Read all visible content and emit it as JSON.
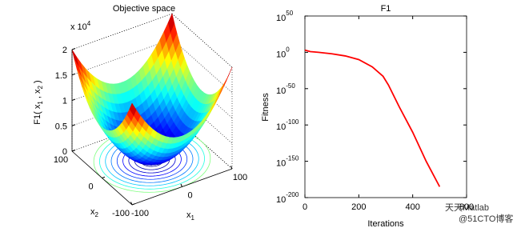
{
  "chart_data": [
    {
      "type": "surface",
      "title": "Objective space",
      "zlabel": [
        "F1( x",
        "1",
        " , x",
        "2",
        " )"
      ],
      "xlabel": {
        "base": "x",
        "sub": "1"
      },
      "ylabel": {
        "base": "x",
        "sub": "2"
      },
      "xlim": [
        -100,
        100
      ],
      "xticks": [
        -100,
        0,
        100
      ],
      "ylim": [
        -100,
        100
      ],
      "yticks": [
        -100,
        0,
        100
      ],
      "zlim": [
        0,
        2
      ],
      "zticks": [
        0,
        0.5,
        1,
        1.5,
        2
      ],
      "zscale": {
        "text": "x 10",
        "exp": "4"
      }
    },
    {
      "type": "line",
      "title": "F1",
      "xlabel": "Iterations",
      "ylabel": "Fitness",
      "log_y": true,
      "xlim": [
        0,
        600
      ],
      "xticks": [
        0,
        200,
        400,
        600
      ],
      "ylim": [
        1e-200,
        1e+50
      ],
      "yticks": [
        {
          "value": 1e+50,
          "label": "10",
          "exp": "50"
        },
        {
          "value": 1,
          "label": "10",
          "exp": "0"
        },
        {
          "value": 1e-50,
          "label": "10",
          "exp": "-50"
        },
        {
          "value": 1e-100,
          "label": "10",
          "exp": "-100"
        },
        {
          "value": 1e-150,
          "label": "10",
          "exp": "-150"
        },
        {
          "value": 1e-200,
          "label": "10",
          "exp": "-200"
        }
      ],
      "series": [
        {
          "color": "#ff0000",
          "x": [
            0,
            20,
            50,
            100,
            150,
            200,
            250,
            290,
            310,
            350,
            400,
            450,
            500
          ],
          "values": [
            1000.0,
            10.0,
            1.0,
            0.01,
            1e-05,
            1e-10,
            1e-20,
            1e-33,
            1e-45,
            1e-75,
            1e-110,
            1e-150,
            1e-185
          ]
        }
      ]
    }
  ],
  "watermark": [
    "天天Matlab",
    "@51CTO博客"
  ]
}
